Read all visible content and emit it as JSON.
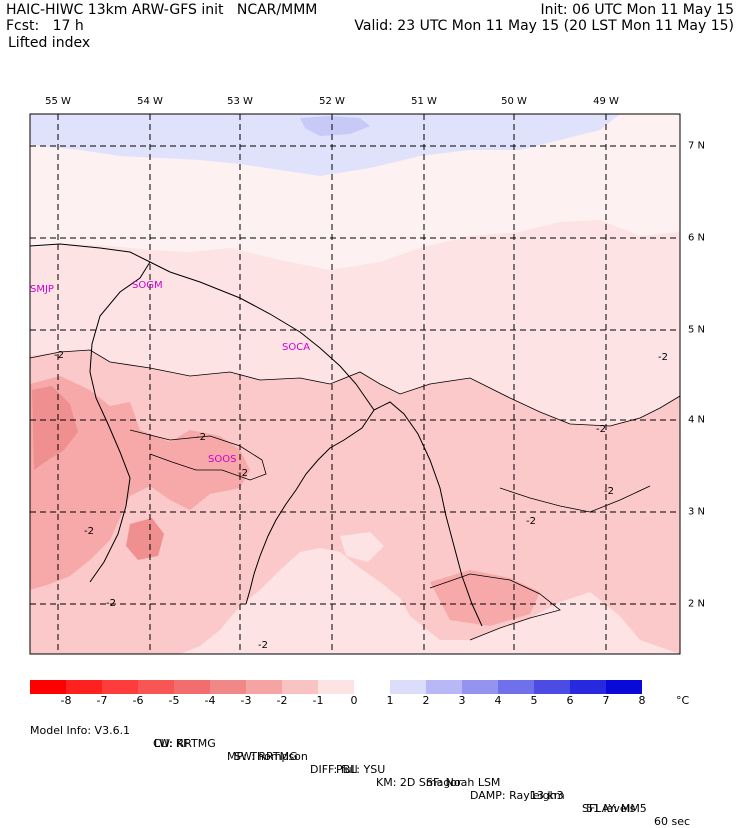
{
  "header": {
    "model_title": "HAIC-HIWC 13km ARW-GFS init   NCAR/MMM",
    "forecast": "Fcst:   17 h",
    "init": "Init: 06 UTC Mon 11 May 15",
    "valid": "Valid: 23 UTC Mon 11 May 15 (20 LST Mon 11 May 15)",
    "field": "Lifted index"
  },
  "map": {
    "lon_labels": [
      "55 W",
      "54 W",
      "53 W",
      "52 W",
      "51 W",
      "50 W",
      "49 W"
    ],
    "lat_labels": [
      "7 N",
      "6 N",
      "5 N",
      "4 N",
      "3 N",
      "2 N"
    ],
    "stations": [
      "SMJP",
      "SOGM",
      "SOCA",
      "SOOS"
    ],
    "contour_labels": [
      "-2",
      "-2",
      "-2",
      "-2",
      "-2",
      "-2",
      "-2",
      "-2",
      "-2",
      "-2",
      "-2"
    ],
    "colors": {
      "neg1": "#fde3e3",
      "neg2": "#fbc9c9",
      "neg3": "#f7a8a8",
      "neg4": "#f08f8f",
      "pos0": "#fdf1f1",
      "pos1": "#e0e2fb",
      "pos2": "#c7caf6"
    }
  },
  "colorbar": {
    "labels": [
      "-8",
      "-7",
      "-6",
      "-5",
      "-4",
      "-3",
      "-2",
      "-1",
      "0",
      "1",
      "2",
      "3",
      "4",
      "5",
      "6",
      "7",
      "8"
    ],
    "unit": "°C",
    "colors": [
      "#ff0000",
      "#ff2020",
      "#ff3c3c",
      "#f85555",
      "#f26e6e",
      "#f08888",
      "#f5a3a3",
      "#f9c3c3",
      "#fde3e3",
      "#ffffff",
      "#dcdcfb",
      "#b8b8f6",
      "#9494f0",
      "#7070ea",
      "#4c4ce4",
      "#2828de",
      "#0a0ad8"
    ]
  },
  "footer": {
    "model_info": "Model Info: V3.6.1",
    "cu": "CU: KF",
    "mp": "MP: Thompson",
    "pbl": "PBL: YSU",
    "sf": "SF: Noah LSM",
    "res": "13 km",
    "levels": "51 levels",
    "dt": "60 sec",
    "lw": "LW: RRTMG",
    "sw": "SW: RRTMG",
    "diff": "DIFF: full",
    "km": "KM: 2D Smagor",
    "damp": "DAMP: Rayleigh3",
    "sflay": "SFLAY: MM5"
  }
}
